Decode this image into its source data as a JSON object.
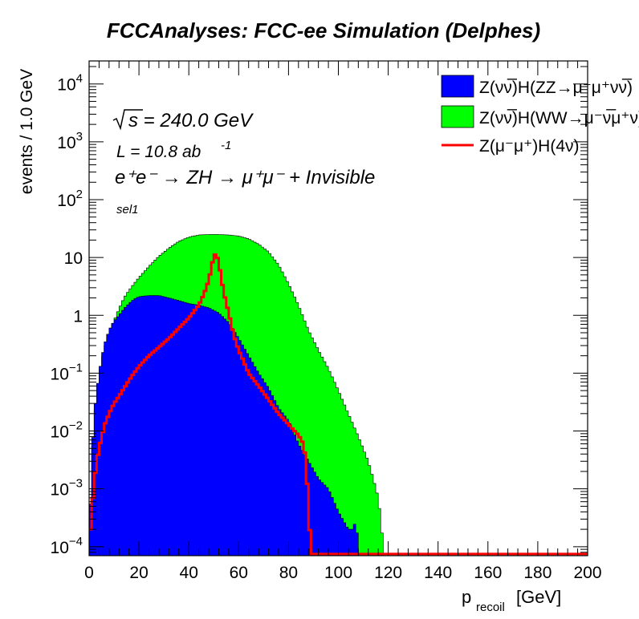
{
  "chart_data": {
    "type": "area",
    "title": "FCCAnalyses: FCC-ee Simulation (Delphes)",
    "xlabel_main": "p",
    "xlabel_sub": "recoil",
    "xlabel_unit": "[GeV]",
    "ylabel": "events / 1.0 GeV",
    "xlim": [
      0,
      200
    ],
    "ylim": [
      7e-05,
      25000
    ],
    "yscale": "log",
    "grid": false,
    "legend_position": "top-right",
    "x_ticks": [
      0,
      20,
      40,
      60,
      80,
      100,
      120,
      140,
      160,
      180,
      200
    ],
    "x_tick_labels": [
      "0",
      "20",
      "40",
      "60",
      "80",
      "100",
      "120",
      "140",
      "160",
      "180",
      "200"
    ],
    "y_ticks": [
      {
        "value": 0.0001,
        "base": "10",
        "exp": "−4"
      },
      {
        "value": 0.001,
        "base": "10",
        "exp": "−3"
      },
      {
        "value": 0.01,
        "base": "10",
        "exp": "−2"
      },
      {
        "value": 0.1,
        "base": "10",
        "exp": "−1"
      },
      {
        "value": 1,
        "base": "1",
        "exp": ""
      },
      {
        "value": 10,
        "base": "10",
        "exp": ""
      },
      {
        "value": 100,
        "base": "10",
        "exp": "2"
      },
      {
        "value": 1000,
        "base": "10",
        "exp": "3"
      },
      {
        "value": 10000,
        "base": "10",
        "exp": "4"
      }
    ],
    "annotations": {
      "sqrt_s": "s = 240.0 GeV",
      "lumi_prefix": "L = 10.8 ab",
      "lumi_exp": "-1",
      "process": "e⁺e⁻ → ZH → μ⁺μ⁻ + Invisible",
      "selection": "sel1"
    },
    "series": [
      {
        "name": "Z(νν̅)H(WW→μ⁻ν̅μ⁺ν)",
        "style": "fill",
        "color": "#00ff00",
        "x": [
          0,
          1,
          2,
          4,
          6,
          8,
          10,
          12,
          14,
          16,
          18,
          20,
          24,
          28,
          32,
          36,
          40,
          44,
          48,
          52,
          56,
          60,
          64,
          68,
          72,
          76,
          80,
          84,
          88,
          92,
          96,
          100,
          104,
          108,
          112,
          114,
          116,
          117,
          118
        ],
        "values": [
          0.0001,
          0.002,
          0.015,
          0.09,
          0.25,
          0.5,
          0.8,
          1.3,
          2.0,
          2.7,
          3.5,
          4.5,
          7.0,
          10.5,
          14.5,
          19.0,
          22.5,
          24.5,
          25.0,
          25.0,
          24.5,
          23.5,
          21.0,
          17.0,
          12.5,
          7.5,
          3.5,
          1.5,
          0.55,
          0.25,
          0.12,
          0.05,
          0.02,
          0.008,
          0.003,
          0.0015,
          0.0007,
          0.0003,
          0.0001
        ]
      },
      {
        "name": "Z(νν̅)H(ZZ→μ⁻μ⁺νν̅)",
        "style": "fill",
        "color": "#0000ff",
        "x": [
          0,
          1,
          2,
          4,
          6,
          8,
          10,
          12,
          14,
          16,
          18,
          20,
          24,
          28,
          32,
          36,
          40,
          44,
          48,
          52,
          56,
          60,
          64,
          68,
          72,
          76,
          80,
          84,
          88,
          92,
          96,
          100,
          104,
          106,
          107,
          108
        ],
        "values": [
          0.0001,
          0.003,
          0.02,
          0.1,
          0.3,
          0.55,
          0.8,
          1.0,
          1.3,
          1.6,
          1.9,
          2.1,
          2.2,
          2.2,
          2.0,
          1.8,
          1.6,
          1.5,
          1.35,
          1.1,
          0.75,
          0.4,
          0.2,
          0.1,
          0.055,
          0.025,
          0.015,
          0.006,
          0.003,
          0.0015,
          0.001,
          0.0004,
          0.0002,
          0.0002,
          0.0003,
          0.0001
        ]
      },
      {
        "name": "Z(μ⁻μ⁺)H(4ν)",
        "style": "line",
        "color": "#ff0000",
        "x": [
          0,
          1,
          2,
          3,
          4,
          6,
          8,
          10,
          12,
          14,
          16,
          18,
          20,
          24,
          28,
          32,
          36,
          40,
          44,
          46,
          48,
          49,
          50,
          51,
          52,
          53,
          54,
          56,
          58,
          60,
          62,
          64,
          68,
          72,
          76,
          80,
          84,
          86,
          87,
          88,
          89,
          200
        ],
        "values": [
          0.0001,
          0.0004,
          0.0012,
          0.003,
          0.005,
          0.012,
          0.02,
          0.03,
          0.04,
          0.055,
          0.075,
          0.1,
          0.13,
          0.2,
          0.28,
          0.4,
          0.6,
          0.9,
          1.5,
          2.3,
          4.0,
          6.5,
          10.5,
          12.0,
          8.0,
          4.5,
          2.5,
          1.1,
          0.45,
          0.25,
          0.16,
          0.1,
          0.06,
          0.035,
          0.02,
          0.013,
          0.0085,
          0.006,
          0.003,
          0.0005,
          7.5e-05,
          7.5e-05
        ]
      }
    ],
    "legend_order": [
      1,
      0,
      2
    ]
  }
}
